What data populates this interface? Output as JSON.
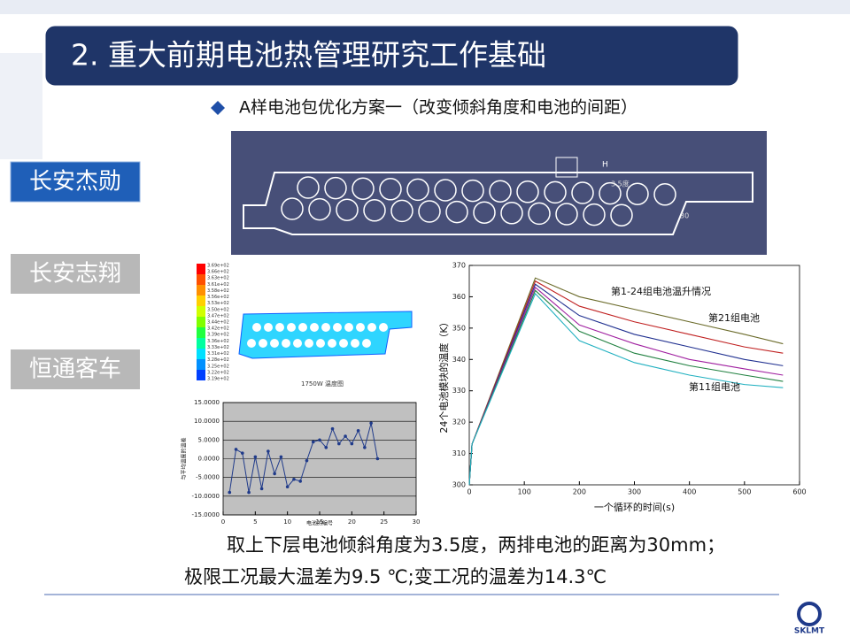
{
  "title": "2. 重大前期电池热管理研究工作基础",
  "sidebar": [
    "长安杰勋",
    "长安志翔",
    "恒通客车"
  ],
  "bullet": "A样电池包优化方案一（改变倾斜角度和电池的间距）",
  "cad": {
    "labels": [
      "H",
      "3.5度",
      "30"
    ]
  },
  "contour": {
    "colorbar_labels": [
      "3.69e+02",
      "3.66e+02",
      "3.63e+02",
      "3.61e+02",
      "3.58e+02",
      "3.56e+02",
      "3.53e+02",
      "3.50e+02",
      "3.47e+02",
      "3.44e+02",
      "3.42e+02",
      "3.39e+02",
      "3.36e+02",
      "3.33e+02",
      "3.31e+02",
      "3.28e+02",
      "3.25e+02",
      "3.22e+02",
      "3.19e+02"
    ],
    "caption": "1750W 温度图"
  },
  "deviation_chart": {
    "type": "line",
    "y_label": "与平均温度的温差",
    "x_label": "电池的编号",
    "x": [
      1,
      2,
      3,
      4,
      5,
      6,
      7,
      8,
      9,
      10,
      11,
      12,
      13,
      14,
      15,
      16,
      17,
      18,
      19,
      20,
      21,
      22,
      23,
      24
    ],
    "values": [
      -9,
      2.5,
      1.5,
      -9,
      0.5,
      -8,
      2,
      -4,
      0.5,
      -7.5,
      -5.5,
      -6,
      -0.5,
      4.5,
      5,
      3,
      8,
      4,
      6,
      4,
      7.5,
      3,
      9.5,
      0
    ],
    "color": "#1f3a8a",
    "xlim": [
      0,
      30
    ],
    "ylim": [
      -15,
      15
    ],
    "xticks": [
      0,
      5,
      10,
      15,
      20,
      25,
      30
    ],
    "yticks": [
      {
        "value": 15,
        "label": "15.0000"
      },
      {
        "value": 10,
        "label": "10.0000"
      },
      {
        "value": 5,
        "label": "5.0000"
      },
      {
        "value": 0,
        "label": "0.0000"
      },
      {
        "value": -5,
        "label": "-5.0000"
      },
      {
        "value": -10,
        "label": "-10.0000"
      },
      {
        "value": -15,
        "label": "-15.0000"
      }
    ],
    "grid": true
  },
  "temperature_chart": {
    "type": "line",
    "y_label": "24个电池模块的温度（K）",
    "x_label": "一个循环的时间(s)",
    "annotations": [
      "第1-24组电池温升情况",
      "第21组电池",
      "第11组电池"
    ],
    "x": [
      0,
      5,
      120,
      200,
      300,
      400,
      500,
      570
    ],
    "series": [
      {
        "color": "#6b6b2a",
        "values": [
          300,
          313,
          366,
          360,
          356,
          352,
          348,
          345
        ]
      },
      {
        "color": "#c02020",
        "values": [
          300,
          313,
          365,
          357,
          352,
          348,
          344,
          342
        ]
      },
      {
        "color": "#203090",
        "values": [
          300,
          313,
          364,
          354,
          348,
          344,
          340,
          338
        ]
      },
      {
        "color": "#a020a0",
        "values": [
          300,
          313,
          363,
          351,
          345,
          340,
          337,
          335
        ]
      },
      {
        "color": "#208040",
        "values": [
          300,
          313,
          362,
          349,
          342,
          338,
          335,
          333
        ]
      },
      {
        "color": "#20b0c0",
        "values": [
          300,
          313,
          361,
          346,
          339,
          335,
          332,
          331
        ]
      }
    ],
    "xlim": [
      0,
      600
    ],
    "ylim": [
      300,
      370
    ],
    "xticks": [
      0,
      100,
      200,
      300,
      400,
      500,
      600
    ],
    "yticks": [
      300,
      310,
      320,
      330,
      340,
      350,
      360,
      370
    ]
  },
  "caption": [
    "取上下层电池倾斜角度为3.5度，两排电池的距离为30mm；",
    "极限工况最大温差为9.5 ℃;变工况的温差为14.3℃"
  ],
  "logo": "SKLMT"
}
